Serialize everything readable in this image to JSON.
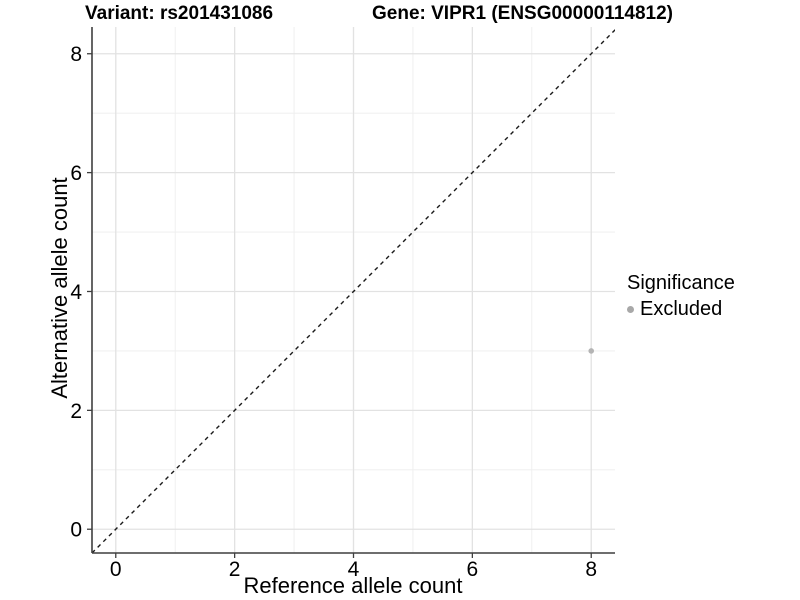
{
  "chart_data": {
    "type": "scatter",
    "title_left": "Variant: rs201431086",
    "title_right": "Gene: VIPR1 (ENSG00000114812)",
    "xlabel": "Reference allele count",
    "ylabel": "Alternative allele count",
    "x_ticks": [
      0,
      2,
      4,
      6,
      8
    ],
    "y_ticks": [
      0,
      2,
      4,
      6,
      8
    ],
    "xlim": [
      -0.4,
      8.4
    ],
    "ylim": [
      -0.4,
      8.45
    ],
    "grid": "on",
    "minor_gridlines_at": [
      1,
      3,
      5,
      7
    ],
    "identity_line": {
      "style": "dashed",
      "equation": "y = x",
      "color": "#1a1a1a"
    },
    "points": [
      {
        "x": 8,
        "y": 3,
        "series": "Excluded"
      }
    ],
    "series": [
      {
        "name": "Excluded",
        "color": "#b4b4b4"
      }
    ],
    "legend": {
      "title": "Significance",
      "position": "right",
      "entries": [
        {
          "label": "Excluded",
          "color": "#a8a8a8"
        }
      ]
    },
    "colors": {
      "background": "#ffffff",
      "grid_major": "#e2e2e2",
      "grid_minor": "#eeeeee",
      "axis_line": "#3f3f3f",
      "tick_text": "#000000"
    }
  }
}
